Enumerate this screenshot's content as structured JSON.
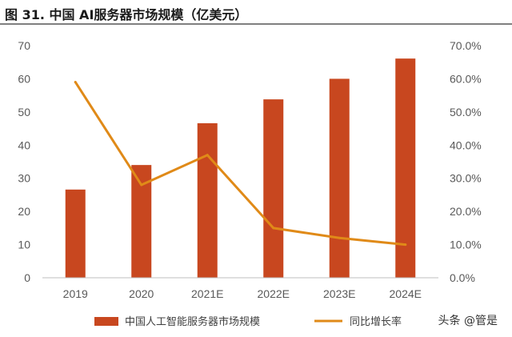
{
  "title": "图 31. 中国 AI服务器市场规模（亿美元）",
  "watermark": "头条 @管是",
  "colors": {
    "bar": "#C8471F",
    "line": "#E08A18",
    "axis": "#bfbfbf",
    "text": "#595959"
  },
  "chart_data": {
    "type": "bar",
    "categories": [
      "2019",
      "2020",
      "2021E",
      "2022E",
      "2023E",
      "2024E"
    ],
    "series": [
      {
        "name": "中国人工智能服务器市场规模",
        "type": "bar",
        "axis": "left",
        "values": [
          26.6,
          34,
          46.6,
          53.8,
          60,
          66.1
        ]
      },
      {
        "name": "同比增长率",
        "type": "line",
        "axis": "right",
        "values": [
          0.59,
          0.28,
          0.37,
          0.15,
          0.12,
          0.1
        ]
      }
    ],
    "left_axis": {
      "min": 0,
      "max": 70,
      "ticks": [
        "0",
        "10",
        "20",
        "30",
        "40",
        "50",
        "60",
        "70"
      ]
    },
    "right_axis": {
      "min": 0,
      "max": 0.7,
      "ticks": [
        "0.0%",
        "10.0%",
        "20.0%",
        "30.0%",
        "40.0%",
        "50.0%",
        "60.0%",
        "70.0%"
      ]
    },
    "legend": {
      "position": "bottom"
    },
    "grid": false
  }
}
